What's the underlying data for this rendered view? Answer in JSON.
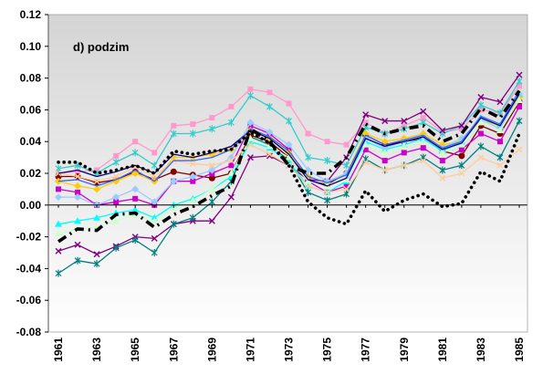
{
  "chart_data": {
    "type": "line",
    "title": "d) podzim",
    "xlabel": "",
    "ylabel": "",
    "x": [
      1961,
      1962,
      1963,
      1964,
      1965,
      1966,
      1967,
      1968,
      1969,
      1970,
      1971,
      1972,
      1973,
      1974,
      1975,
      1976,
      1977,
      1978,
      1979,
      1980,
      1981,
      1982,
      1983,
      1984,
      1985
    ],
    "x_tick_labels": [
      "1961",
      "1963",
      "1965",
      "1967",
      "1969",
      "1971",
      "1973",
      "1975",
      "1977",
      "1979",
      "1981",
      "1983",
      "1985"
    ],
    "y_tick_labels": [
      "-0.08",
      "-0.06",
      "-0.04",
      "-0.02",
      "0.00",
      "0.02",
      "0.04",
      "0.06",
      "0.08",
      "0.10",
      "0.12"
    ],
    "ylim": [
      -0.08,
      0.12
    ],
    "grid": false,
    "background": {
      "top": "#d4d4d4",
      "bottom": "#ffffff"
    },
    "series": [
      {
        "color": "#000000",
        "style": "dotted",
        "marker": "none",
        "values": [
          0.027,
          0.027,
          0.02,
          0.022,
          0.025,
          0.02,
          0.034,
          0.032,
          0.034,
          0.035,
          0.046,
          0.039,
          0.025,
          0.002,
          -0.008,
          -0.012,
          0.009,
          -0.004,
          0.003,
          0.007,
          -0.001,
          0.001,
          0.021,
          0.015,
          0.045
        ]
      },
      {
        "color": "#000000",
        "style": "dashdot-thick",
        "marker": "none",
        "values": [
          -0.023,
          -0.015,
          -0.016,
          -0.006,
          -0.005,
          -0.014,
          -0.006,
          -0.001,
          0.006,
          0.012,
          0.048,
          0.04,
          0.025,
          0.02,
          0.02,
          0.03,
          0.051,
          0.045,
          0.048,
          0.05,
          0.04,
          0.045,
          0.061,
          0.055,
          0.072
        ]
      },
      {
        "color": "#ff99cc",
        "style": "solid",
        "marker": "square",
        "values": [
          0.02,
          0.021,
          0.022,
          0.031,
          0.04,
          0.033,
          0.05,
          0.051,
          0.055,
          0.062,
          0.073,
          0.071,
          0.064,
          0.045,
          0.04,
          0.038,
          0.052,
          0.045,
          0.05,
          0.055,
          0.046,
          0.048,
          0.06,
          0.058,
          0.075
        ]
      },
      {
        "color": "#33cccc",
        "style": "solid",
        "marker": "star",
        "values": [
          0.023,
          0.025,
          0.02,
          0.027,
          0.033,
          0.025,
          0.045,
          0.045,
          0.048,
          0.052,
          0.069,
          0.062,
          0.053,
          0.03,
          0.028,
          0.025,
          0.049,
          0.045,
          0.048,
          0.052,
          0.045,
          0.05,
          0.063,
          0.058,
          0.078
        ]
      },
      {
        "color": "#800080",
        "style": "solid",
        "marker": "x",
        "values": [
          -0.029,
          -0.025,
          -0.031,
          -0.026,
          -0.02,
          -0.021,
          -0.012,
          -0.01,
          -0.01,
          0.005,
          0.03,
          0.031,
          0.025,
          0.016,
          0.015,
          0.03,
          0.057,
          0.053,
          0.053,
          0.059,
          0.047,
          0.05,
          0.068,
          0.065,
          0.082
        ]
      },
      {
        "color": "#008080",
        "style": "solid",
        "marker": "star",
        "values": [
          -0.043,
          -0.035,
          -0.037,
          -0.027,
          -0.022,
          -0.03,
          -0.012,
          -0.008,
          0.002,
          0.015,
          0.043,
          0.038,
          0.028,
          0.008,
          0.003,
          0.007,
          0.029,
          0.022,
          0.025,
          0.03,
          0.022,
          0.025,
          0.037,
          0.03,
          0.053
        ]
      },
      {
        "color": "#800000",
        "style": "solid",
        "marker": "circle",
        "values": [
          0.018,
          0.018,
          0.014,
          0.016,
          0.021,
          0.016,
          0.021,
          0.019,
          0.017,
          0.02,
          0.044,
          0.04,
          0.03,
          0.015,
          0.013,
          0.02,
          0.044,
          0.038,
          0.04,
          0.042,
          0.034,
          0.031,
          0.05,
          0.045,
          0.065
        ]
      },
      {
        "color": "#cc00cc",
        "style": "solid",
        "marker": "square",
        "values": [
          0.01,
          0.008,
          0.0,
          0.002,
          0.004,
          0.0,
          0.015,
          0.015,
          0.02,
          0.025,
          0.05,
          0.045,
          0.035,
          0.015,
          0.008,
          0.012,
          0.035,
          0.028,
          0.033,
          0.036,
          0.028,
          0.035,
          0.045,
          0.04,
          0.062
        ]
      },
      {
        "color": "#ffcc00",
        "style": "solid",
        "marker": "diamond",
        "values": [
          0.015,
          0.012,
          0.01,
          0.015,
          0.02,
          0.015,
          0.03,
          0.03,
          0.032,
          0.035,
          0.047,
          0.042,
          0.033,
          0.018,
          0.014,
          0.02,
          0.045,
          0.04,
          0.042,
          0.045,
          0.038,
          0.04,
          0.054,
          0.05,
          0.068
        ]
      },
      {
        "color": "#00ffff",
        "style": "solid",
        "marker": "triangle",
        "values": [
          -0.012,
          -0.01,
          -0.008,
          -0.005,
          -0.003,
          -0.008,
          0.0,
          0.004,
          0.01,
          0.018,
          0.04,
          0.036,
          0.027,
          0.012,
          0.008,
          0.015,
          0.04,
          0.035,
          0.038,
          0.042,
          0.034,
          0.04,
          0.055,
          0.05,
          0.07
        ]
      },
      {
        "color": "#99ccff",
        "style": "solid",
        "marker": "diamond",
        "values": [
          0.005,
          0.005,
          0.0,
          0.005,
          0.01,
          0.002,
          0.015,
          0.018,
          0.022,
          0.03,
          0.052,
          0.046,
          0.038,
          0.022,
          0.015,
          0.02,
          0.042,
          0.036,
          0.04,
          0.043,
          0.036,
          0.042,
          0.054,
          0.048,
          0.07
        ]
      },
      {
        "color": "#ffcc99",
        "style": "solid",
        "marker": "x",
        "values": [
          0.02,
          0.018,
          0.015,
          0.018,
          0.024,
          0.018,
          0.028,
          0.026,
          0.025,
          0.028,
          0.038,
          0.032,
          0.025,
          0.012,
          0.008,
          0.01,
          0.027,
          0.022,
          0.025,
          0.028,
          0.017,
          0.02,
          0.03,
          0.025,
          0.035
        ]
      },
      {
        "color": "#ccffcc",
        "style": "solid",
        "marker": "triangle",
        "values": [
          -0.018,
          -0.015,
          -0.014,
          -0.01,
          -0.006,
          -0.01,
          -0.002,
          0.003,
          0.01,
          0.02,
          0.042,
          0.037,
          0.03,
          0.015,
          0.012,
          0.016,
          0.038,
          0.033,
          0.037,
          0.04,
          0.033,
          0.038,
          0.052,
          0.047,
          0.066
        ]
      },
      {
        "color": "#000080",
        "style": "solid",
        "marker": "none",
        "values": [
          0.02,
          0.022,
          0.018,
          0.021,
          0.025,
          0.02,
          0.032,
          0.03,
          0.033,
          0.037,
          0.047,
          0.042,
          0.032,
          0.016,
          0.012,
          0.017,
          0.042,
          0.037,
          0.04,
          0.043,
          0.035,
          0.039,
          0.055,
          0.05,
          0.07
        ]
      },
      {
        "color": "#3366ff",
        "style": "solid",
        "marker": "none",
        "values": [
          0.015,
          0.016,
          0.012,
          0.016,
          0.022,
          0.015,
          0.028,
          0.028,
          0.03,
          0.035,
          0.048,
          0.043,
          0.034,
          0.018,
          0.014,
          0.019,
          0.044,
          0.038,
          0.041,
          0.044,
          0.036,
          0.04,
          0.056,
          0.051,
          0.072
        ]
      }
    ]
  }
}
